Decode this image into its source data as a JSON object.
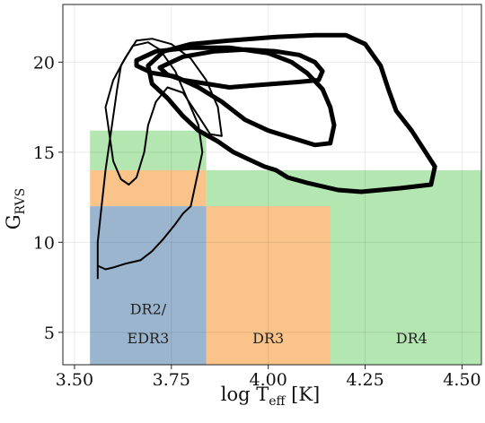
{
  "chart_data": {
    "type": "area",
    "xlabel": {
      "main": "log T",
      "sub": "eff",
      "unit": " [K]"
    },
    "ylabel": {
      "main": "G",
      "sub": "RVS"
    },
    "xlim": [
      3.47,
      4.55
    ],
    "ylim": [
      3.2,
      23.2
    ],
    "grid": true,
    "x_ticks": [
      {
        "value": 3.5,
        "label": "3.50"
      },
      {
        "value": 3.75,
        "label": "3.75"
      },
      {
        "value": 4.0,
        "label": "4.00"
      },
      {
        "value": 4.25,
        "label": "4.25"
      },
      {
        "value": 4.5,
        "label": "4.50"
      }
    ],
    "y_ticks": [
      {
        "value": 5,
        "label": "5"
      },
      {
        "value": 10,
        "label": "10"
      },
      {
        "value": 15,
        "label": "15"
      },
      {
        "value": 20,
        "label": "20"
      }
    ],
    "regions": [
      {
        "name": "dr4-upper",
        "color": "#b3e6b0",
        "x0": 3.54,
        "x1": 3.84,
        "y0": 14.0,
        "y1": 16.2
      },
      {
        "name": "dr4-right",
        "color": "#b3e6b0",
        "x0": 3.84,
        "x1": 4.55,
        "y0": 3.2,
        "y1": 14.0
      },
      {
        "name": "dr3-cool",
        "color": "#f9c38a",
        "x0": 3.54,
        "x1": 3.84,
        "y0": 12.0,
        "y1": 14.0
      },
      {
        "name": "dr3-hot",
        "color": "#f9c38a",
        "x0": 3.84,
        "x1": 4.16,
        "y0": 3.2,
        "y1": 12.0
      },
      {
        "name": "dr2-edr3",
        "color": "#9bb5cf",
        "x0": 3.54,
        "x1": 3.84,
        "y0": 3.2,
        "y1": 12.0
      }
    ],
    "region_labels": [
      {
        "text": "DR2/",
        "x": 3.69,
        "y": 6.0
      },
      {
        "text": "EDR3",
        "x": 3.69,
        "y": 4.4
      },
      {
        "text": "DR3",
        "x": 4.0,
        "y": 4.4
      },
      {
        "text": "DR4",
        "x": 4.37,
        "y": 4.4
      }
    ],
    "contours": [
      {
        "name": "contour-thin-1",
        "stroke_width": 2,
        "points": [
          [
            3.56,
            8.0
          ],
          [
            3.56,
            10.0
          ],
          [
            3.57,
            12.0
          ],
          [
            3.58,
            14.0
          ],
          [
            3.59,
            15.5
          ],
          [
            3.6,
            17.0
          ],
          [
            3.61,
            18.5
          ],
          [
            3.62,
            19.8
          ],
          [
            3.65,
            20.9
          ],
          [
            3.69,
            21.1
          ],
          [
            3.72,
            20.7
          ],
          [
            3.76,
            19.5
          ],
          [
            3.79,
            18.0
          ],
          [
            3.82,
            16.5
          ],
          [
            3.83,
            15.0
          ],
          [
            3.82,
            14.0
          ],
          [
            3.81,
            13.0
          ],
          [
            3.8,
            12.0
          ],
          [
            3.78,
            11.6
          ],
          [
            3.76,
            11.0
          ],
          [
            3.73,
            10.2
          ],
          [
            3.7,
            9.5
          ],
          [
            3.67,
            9.0
          ],
          [
            3.63,
            8.8
          ],
          [
            3.6,
            8.6
          ],
          [
            3.58,
            8.5
          ],
          [
            3.56,
            8.7
          ],
          [
            3.56,
            8.0
          ]
        ]
      },
      {
        "name": "contour-thin-2",
        "stroke_width": 2,
        "points": [
          [
            3.63,
            20.2
          ],
          [
            3.6,
            19.0
          ],
          [
            3.58,
            17.5
          ],
          [
            3.59,
            16.0
          ],
          [
            3.6,
            14.5
          ],
          [
            3.62,
            13.5
          ],
          [
            3.64,
            13.2
          ],
          [
            3.66,
            13.6
          ],
          [
            3.68,
            15.0
          ],
          [
            3.69,
            16.5
          ],
          [
            3.71,
            17.8
          ],
          [
            3.74,
            18.6
          ],
          [
            3.78,
            18.3
          ],
          [
            3.82,
            17.0
          ],
          [
            3.85,
            16.0
          ],
          [
            3.88,
            15.9
          ],
          [
            3.87,
            17.5
          ],
          [
            3.84,
            19.0
          ],
          [
            3.8,
            20.2
          ],
          [
            3.75,
            21.0
          ],
          [
            3.7,
            21.3
          ],
          [
            3.66,
            21.2
          ],
          [
            3.63,
            20.2
          ]
        ]
      },
      {
        "name": "contour-thick-1",
        "stroke_width": 5,
        "points": [
          [
            3.69,
            19.8
          ],
          [
            3.73,
            20.6
          ],
          [
            3.8,
            21.0
          ],
          [
            3.9,
            21.2
          ],
          [
            4.02,
            21.4
          ],
          [
            4.12,
            21.5
          ],
          [
            4.2,
            21.5
          ],
          [
            4.25,
            21.0
          ],
          [
            4.29,
            19.8
          ],
          [
            4.31,
            18.5
          ],
          [
            4.33,
            17.3
          ],
          [
            4.37,
            16.2
          ],
          [
            4.4,
            15.2
          ],
          [
            4.43,
            14.2
          ],
          [
            4.42,
            13.2
          ],
          [
            4.38,
            13.1
          ],
          [
            4.34,
            13.0
          ],
          [
            4.29,
            12.9
          ],
          [
            4.24,
            12.8
          ],
          [
            4.18,
            12.9
          ],
          [
            4.1,
            13.3
          ],
          [
            4.05,
            13.6
          ],
          [
            4.02,
            14.0
          ],
          [
            3.99,
            14.2
          ],
          [
            3.95,
            14.6
          ],
          [
            3.91,
            15.0
          ],
          [
            3.87,
            15.6
          ],
          [
            3.82,
            16.2
          ],
          [
            3.78,
            17.0
          ],
          [
            3.74,
            18.0
          ],
          [
            3.7,
            18.8
          ],
          [
            3.69,
            19.8
          ]
        ]
      },
      {
        "name": "contour-thick-2",
        "stroke_width": 5,
        "points": [
          [
            3.66,
            20.1
          ],
          [
            3.71,
            20.6
          ],
          [
            3.8,
            20.8
          ],
          [
            3.9,
            20.8
          ],
          [
            4.0,
            20.5
          ],
          [
            4.06,
            20.0
          ],
          [
            4.1,
            19.4
          ],
          [
            4.14,
            18.5
          ],
          [
            4.16,
            17.5
          ],
          [
            4.17,
            16.5
          ],
          [
            4.16,
            15.5
          ],
          [
            4.12,
            15.4
          ],
          [
            4.06,
            15.8
          ],
          [
            4.0,
            16.2
          ],
          [
            3.94,
            16.8
          ],
          [
            3.88,
            17.8
          ],
          [
            3.82,
            18.6
          ],
          [
            3.76,
            19.2
          ],
          [
            3.7,
            19.4
          ],
          [
            3.66,
            19.8
          ],
          [
            3.66,
            20.1
          ]
        ]
      },
      {
        "name": "contour-thick-3",
        "stroke_width": 5,
        "points": [
          [
            3.72,
            19.7
          ],
          [
            3.78,
            20.3
          ],
          [
            3.86,
            20.6
          ],
          [
            3.94,
            20.7
          ],
          [
            4.02,
            20.6
          ],
          [
            4.08,
            20.4
          ],
          [
            4.12,
            20.0
          ],
          [
            4.14,
            19.5
          ],
          [
            4.13,
            19.0
          ],
          [
            4.08,
            18.9
          ],
          [
            4.02,
            18.8
          ],
          [
            3.96,
            18.7
          ],
          [
            3.9,
            18.6
          ],
          [
            3.84,
            18.8
          ],
          [
            3.78,
            19.0
          ],
          [
            3.74,
            19.3
          ],
          [
            3.72,
            19.7
          ]
        ]
      }
    ]
  }
}
